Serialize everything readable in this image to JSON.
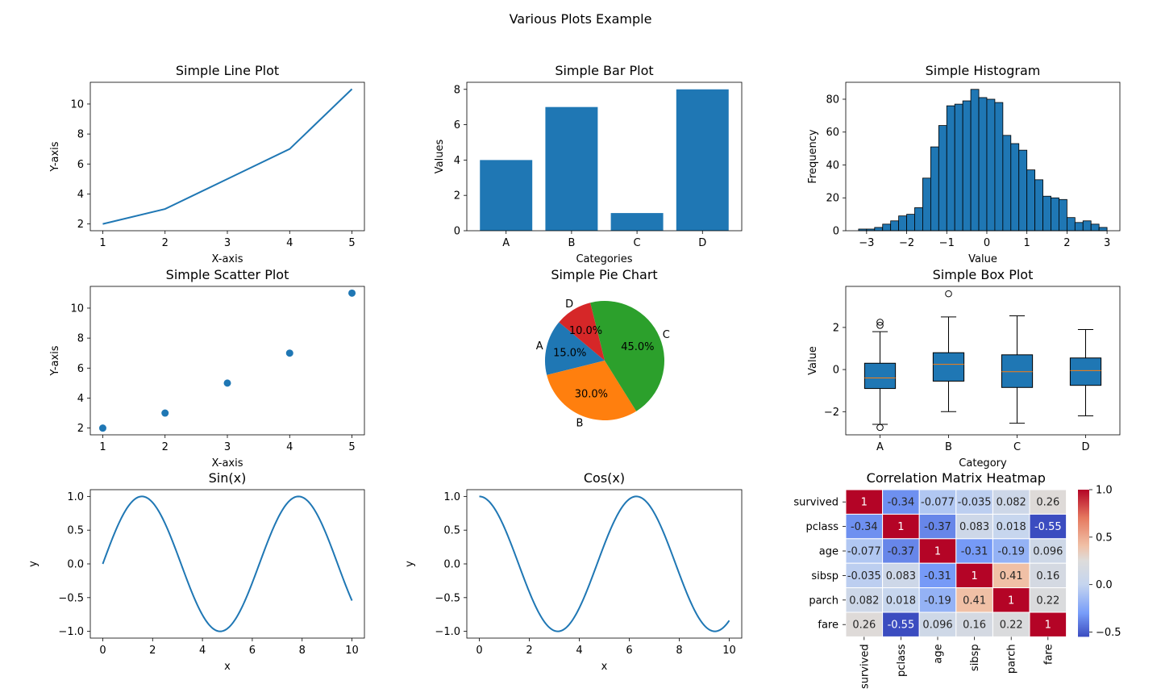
{
  "figure_title": "Various Plots Example",
  "colors": {
    "blue": "#1f77b4",
    "orange": "#ff7f0e",
    "green": "#2ca02c",
    "red": "#d62728",
    "edge": "#000000"
  },
  "chart_data": [
    {
      "type": "line",
      "title": "Simple Line Plot",
      "xlabel": "X-axis",
      "ylabel": "Y-axis",
      "x": [
        1,
        2,
        3,
        4,
        5
      ],
      "y": [
        2,
        3,
        5,
        7,
        11
      ],
      "xlim": [
        0.8,
        5.2
      ],
      "ylim": [
        1.55,
        11.45
      ],
      "xticks": [
        1,
        2,
        3,
        4,
        5
      ],
      "yticks": [
        2,
        4,
        6,
        8,
        10
      ]
    },
    {
      "type": "bar",
      "title": "Simple Bar Plot",
      "xlabel": "Categories",
      "ylabel": "Values",
      "categories": [
        "A",
        "B",
        "C",
        "D"
      ],
      "values": [
        4,
        7,
        1,
        8
      ],
      "ylim": [
        0,
        8.4
      ],
      "yticks": [
        0,
        2,
        4,
        6,
        8
      ]
    },
    {
      "type": "bar",
      "subtype": "histogram",
      "title": "Simple Histogram",
      "xlabel": "Value",
      "ylabel": "Frequency",
      "bin_start": -3.2,
      "bin_width": 0.2,
      "values": [
        1,
        1,
        2,
        4,
        6,
        9,
        10,
        14,
        32,
        51,
        64,
        76,
        77,
        79,
        86,
        81,
        80,
        78,
        58,
        53,
        49,
        37,
        31,
        21,
        20,
        19,
        8,
        5,
        6,
        4,
        2
      ],
      "xlim": [
        -3.52,
        3.32
      ],
      "ylim": [
        0,
        90.3
      ],
      "xticks": [
        -3,
        -2,
        -1,
        0,
        1,
        2,
        3
      ],
      "xticklabels": [
        "−3",
        "−2",
        "−1",
        "0",
        "1",
        "2",
        "3"
      ],
      "yticks": [
        0,
        20,
        40,
        60,
        80
      ]
    },
    {
      "type": "scatter",
      "title": "Simple Scatter Plot",
      "xlabel": "X-axis",
      "ylabel": "Y-axis",
      "x": [
        1,
        2,
        3,
        4,
        5
      ],
      "y": [
        2,
        3,
        5,
        7,
        11
      ],
      "xlim": [
        0.8,
        5.2
      ],
      "ylim": [
        1.55,
        11.45
      ],
      "xticks": [
        1,
        2,
        3,
        4,
        5
      ],
      "yticks": [
        2,
        4,
        6,
        8,
        10
      ]
    },
    {
      "type": "pie",
      "title": "Simple Pie Chart",
      "start_angle_deg": 140,
      "slices": [
        {
          "label": "A",
          "value": 15,
          "pct": "15.0%",
          "color": "#1f77b4"
        },
        {
          "label": "B",
          "value": 30,
          "pct": "30.0%",
          "color": "#ff7f0e"
        },
        {
          "label": "C",
          "value": 45,
          "pct": "45.0%",
          "color": "#2ca02c"
        },
        {
          "label": "D",
          "value": 10,
          "pct": "10.0%",
          "color": "#d62728"
        }
      ]
    },
    {
      "type": "box",
      "title": "Simple Box Plot",
      "xlabel": "Category",
      "ylabel": "Value",
      "categories": [
        "A",
        "B",
        "C",
        "D"
      ],
      "boxes": [
        {
          "whisker_low": -2.6,
          "q1": -0.9,
          "median": -0.4,
          "q3": 0.3,
          "whisker_high": 1.8,
          "outliers": [
            2.1,
            2.25,
            -2.75
          ]
        },
        {
          "whisker_low": -2.0,
          "q1": -0.55,
          "median": 0.25,
          "q3": 0.8,
          "whisker_high": 2.5,
          "outliers": [
            3.6
          ]
        },
        {
          "whisker_low": -2.55,
          "q1": -0.85,
          "median": -0.1,
          "q3": 0.7,
          "whisker_high": 2.55,
          "outliers": []
        },
        {
          "whisker_low": -2.2,
          "q1": -0.75,
          "median": -0.05,
          "q3": 0.55,
          "whisker_high": 1.9,
          "outliers": []
        }
      ],
      "ylim": [
        -3.1,
        3.95
      ],
      "yticks": [
        -2,
        0,
        2
      ],
      "yticklabels": [
        "−2",
        "0",
        "2"
      ]
    },
    {
      "type": "line",
      "title": "Sin(x)",
      "xlabel": "x",
      "ylabel": "y",
      "function": "sin",
      "xlim": [
        -0.5,
        10.5
      ],
      "ylim": [
        -1.1,
        1.1
      ],
      "xticks": [
        0,
        2,
        4,
        6,
        8,
        10
      ],
      "yticks": [
        -1.0,
        -0.5,
        0.0,
        0.5,
        1.0
      ],
      "yticklabels": [
        "−1.0",
        "−0.5",
        "0.0",
        "0.5",
        "1.0"
      ]
    },
    {
      "type": "line",
      "title": "Cos(x)",
      "xlabel": "x",
      "ylabel": "y",
      "function": "cos",
      "xlim": [
        -0.5,
        10.5
      ],
      "ylim": [
        -1.1,
        1.1
      ],
      "xticks": [
        0,
        2,
        4,
        6,
        8,
        10
      ],
      "yticks": [
        -1.0,
        -0.5,
        0.0,
        0.5,
        1.0
      ],
      "yticklabels": [
        "−1.0",
        "−0.5",
        "0.0",
        "0.5",
        "1.0"
      ]
    },
    {
      "type": "heatmap",
      "title": "Correlation Matrix Heatmap",
      "labels": [
        "survived",
        "pclass",
        "age",
        "sibsp",
        "parch",
        "fare"
      ],
      "matrix": [
        [
          1,
          -0.34,
          -0.077,
          -0.035,
          0.082,
          0.26
        ],
        [
          -0.34,
          1,
          -0.37,
          0.083,
          0.018,
          -0.55
        ],
        [
          -0.077,
          -0.37,
          1,
          -0.31,
          -0.19,
          0.096
        ],
        [
          -0.035,
          0.083,
          -0.31,
          1,
          0.41,
          0.16
        ],
        [
          0.082,
          0.018,
          -0.19,
          0.41,
          1,
          0.22
        ],
        [
          0.26,
          -0.55,
          0.096,
          0.16,
          0.22,
          1
        ]
      ],
      "annotations": [
        [
          "1",
          "-0.34",
          "-0.077",
          "-0.035",
          "0.082",
          "0.26"
        ],
        [
          "-0.34",
          "1",
          "-0.37",
          "0.083",
          "0.018",
          "-0.55"
        ],
        [
          "-0.077",
          "-0.37",
          "1",
          "-0.31",
          "-0.19",
          "0.096"
        ],
        [
          "-0.035",
          "0.083",
          "-0.31",
          "1",
          "0.41",
          "0.16"
        ],
        [
          "0.082",
          "0.018",
          "-0.19",
          "0.41",
          "1",
          "0.22"
        ],
        [
          "0.26",
          "-0.55",
          "0.096",
          "0.16",
          "0.22",
          "1"
        ]
      ],
      "colormap": "coolwarm",
      "vmin": -0.55,
      "vmax": 1.0,
      "colorbar_ticks": [
        -0.5,
        0.0,
        0.5,
        1.0
      ],
      "colorbar_ticklabels": [
        "−0.5",
        "0.0",
        "0.5",
        "1.0"
      ]
    }
  ]
}
